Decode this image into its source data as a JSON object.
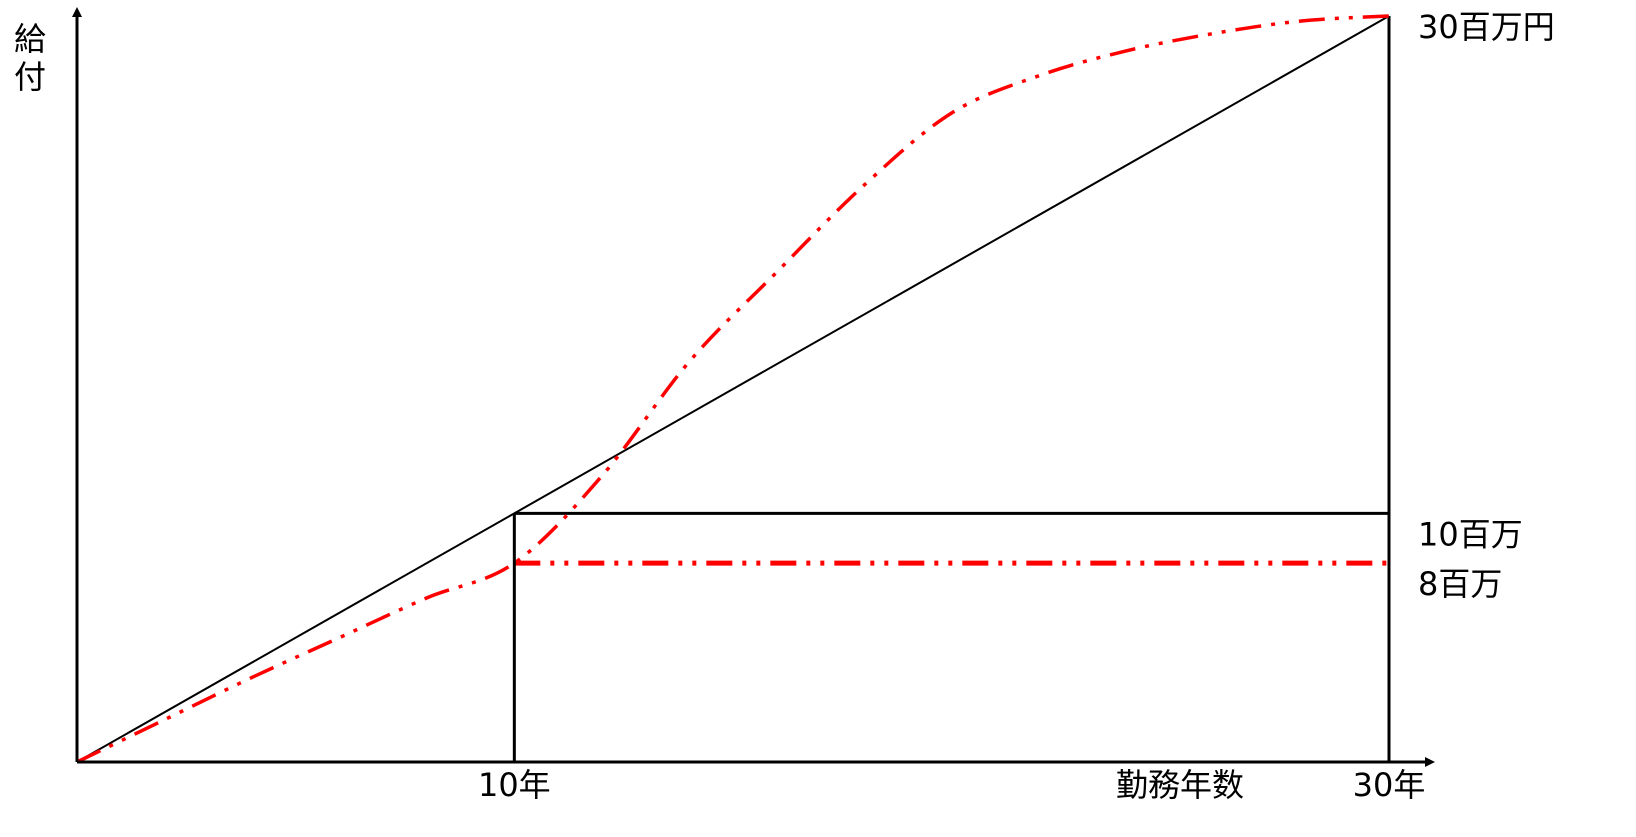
{
  "chart_data": {
    "type": "line",
    "title": "",
    "xlabel": "勤務年数",
    "ylabel": "給付",
    "xlim": [
      0,
      30
    ],
    "ylim": [
      0,
      30
    ],
    "x_ticks": [
      {
        "value": 10,
        "label": "10年"
      },
      {
        "value": 30,
        "label": "30年"
      }
    ],
    "y_ticks": [
      {
        "value": 30,
        "label": "30百万円"
      },
      {
        "value": 10,
        "label": "10百万"
      },
      {
        "value": 8,
        "label": "8百万"
      }
    ],
    "series": [
      {
        "style": "solid",
        "color": "#000000",
        "x": [
          0,
          10,
          30
        ],
        "y": [
          0,
          10,
          30
        ]
      },
      {
        "style": "dash-dot-dot",
        "color": "#ff0000",
        "x": [
          0,
          2,
          4,
          6,
          8,
          10,
          12,
          14,
          16,
          18,
          20,
          22,
          24,
          26,
          28,
          30
        ],
        "y": [
          0,
          1.7,
          3.4,
          5.0,
          6.6,
          8.0,
          11.5,
          16.1,
          19.7,
          23.2,
          26.1,
          27.6,
          28.6,
          29.3,
          29.8,
          30
        ]
      }
    ],
    "reference_lines": [
      {
        "style": "solid",
        "color": "#000000",
        "value": 10,
        "x_from": 10,
        "x_to": 30
      },
      {
        "style": "dash-dot-dot",
        "color": "#ff0000",
        "value": 8,
        "x_from": 10,
        "x_to": 30
      }
    ],
    "grid": false,
    "legend": "none"
  }
}
